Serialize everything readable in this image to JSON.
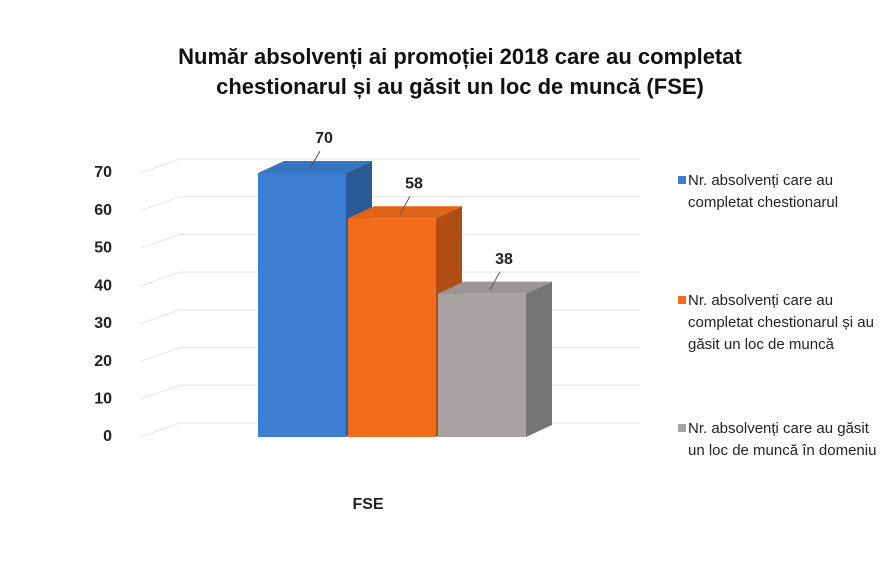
{
  "chart_data": {
    "type": "bar3d",
    "title": "Număr absolvenți ai promoției 2018 care au completat chestionarul și au găsit un loc de muncă (FSE)",
    "categories": [
      "FSE"
    ],
    "series": [
      {
        "name": "Nr. absolvenți care au completat chestionarul",
        "color": "#3c7fd2",
        "values": [
          70
        ]
      },
      {
        "name": "Nr. absolvenți care au completat chestionarul și au găsit un loc de muncă",
        "color": "#f36c1c",
        "values": [
          58
        ]
      },
      {
        "name": "Nr. absolvenți care au găsit un loc de muncă în domeniu",
        "color": "#a7a3a3",
        "values": [
          38
        ]
      }
    ],
    "ylim": [
      0,
      70
    ],
    "yticks": [
      0,
      10,
      20,
      30,
      40,
      50,
      60,
      70
    ],
    "grid": true,
    "legend": "right"
  }
}
